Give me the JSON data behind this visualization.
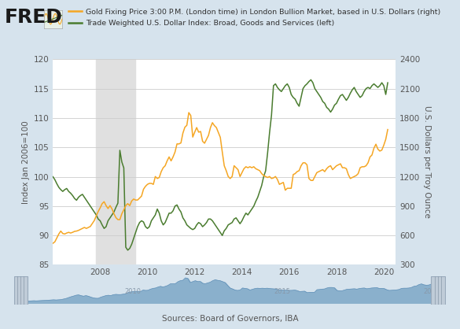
{
  "legend_line1": "Gold Fixing Price 3:00 P.M. (London time) in London Bullion Market, based in U.S. Dollars (right)",
  "legend_line2": "Trade Weighted U.S. Dollar Index: Broad, Goods and Services (left)",
  "ylabel_left": "Index Jan 2006=100",
  "ylabel_right": "U.S. Dollars per Troy Ounce",
  "source": "Sources: Board of Governors, IBA",
  "bg_color": "#d6e3ed",
  "plot_bg_color": "#ffffff",
  "recession_color": "#e0e0e0",
  "recession_start": 2007.83,
  "recession_end": 2009.5,
  "ylim_left": [
    85,
    120
  ],
  "ylim_right": [
    300,
    2400
  ],
  "xlim": [
    2006.0,
    2020.5
  ],
  "yticks_left": [
    85,
    90,
    95,
    100,
    105,
    110,
    115,
    120
  ],
  "yticks_right": [
    300,
    600,
    900,
    1200,
    1500,
    1800,
    2100,
    2400
  ],
  "xticks": [
    2008,
    2010,
    2012,
    2014,
    2016,
    2018,
    2020
  ],
  "dollar_color": "#4a7c2f",
  "gold_color": "#f5a623",
  "dollar_index": {
    "x": [
      2006.0,
      2006.083,
      2006.167,
      2006.25,
      2006.333,
      2006.417,
      2006.5,
      2006.583,
      2006.667,
      2006.75,
      2006.833,
      2006.917,
      2007.0,
      2007.083,
      2007.167,
      2007.25,
      2007.333,
      2007.417,
      2007.5,
      2007.583,
      2007.667,
      2007.75,
      2007.833,
      2007.917,
      2008.0,
      2008.083,
      2008.167,
      2008.25,
      2008.333,
      2008.417,
      2008.5,
      2008.583,
      2008.667,
      2008.75,
      2008.833,
      2008.917,
      2009.0,
      2009.083,
      2009.167,
      2009.25,
      2009.333,
      2009.417,
      2009.5,
      2009.583,
      2009.667,
      2009.75,
      2009.833,
      2009.917,
      2010.0,
      2010.083,
      2010.167,
      2010.25,
      2010.333,
      2010.417,
      2010.5,
      2010.583,
      2010.667,
      2010.75,
      2010.833,
      2010.917,
      2011.0,
      2011.083,
      2011.167,
      2011.25,
      2011.333,
      2011.417,
      2011.5,
      2011.583,
      2011.667,
      2011.75,
      2011.833,
      2011.917,
      2012.0,
      2012.083,
      2012.167,
      2012.25,
      2012.333,
      2012.417,
      2012.5,
      2012.583,
      2012.667,
      2012.75,
      2012.833,
      2012.917,
      2013.0,
      2013.083,
      2013.167,
      2013.25,
      2013.333,
      2013.417,
      2013.5,
      2013.583,
      2013.667,
      2013.75,
      2013.833,
      2013.917,
      2014.0,
      2014.083,
      2014.167,
      2014.25,
      2014.333,
      2014.417,
      2014.5,
      2014.583,
      2014.667,
      2014.75,
      2014.833,
      2014.917,
      2015.0,
      2015.083,
      2015.167,
      2015.25,
      2015.333,
      2015.417,
      2015.5,
      2015.583,
      2015.667,
      2015.75,
      2015.833,
      2015.917,
      2016.0,
      2016.083,
      2016.167,
      2016.25,
      2016.333,
      2016.417,
      2016.5,
      2016.583,
      2016.667,
      2016.75,
      2016.833,
      2016.917,
      2017.0,
      2017.083,
      2017.167,
      2017.25,
      2017.333,
      2017.417,
      2017.5,
      2017.583,
      2017.667,
      2017.75,
      2017.833,
      2017.917,
      2018.0,
      2018.083,
      2018.167,
      2018.25,
      2018.333,
      2018.417,
      2018.5,
      2018.583,
      2018.667,
      2018.75,
      2018.833,
      2018.917,
      2019.0,
      2019.083,
      2019.167,
      2019.25,
      2019.333,
      2019.417,
      2019.5,
      2019.583,
      2019.667,
      2019.75,
      2019.833,
      2019.917,
      2020.0,
      2020.083,
      2020.167
    ],
    "y": [
      100.0,
      99.5,
      98.8,
      98.2,
      97.8,
      97.5,
      97.8,
      98.0,
      97.5,
      97.2,
      96.8,
      96.3,
      96.0,
      96.5,
      96.8,
      97.0,
      96.5,
      96.0,
      95.5,
      95.0,
      94.5,
      94.0,
      93.5,
      92.8,
      92.5,
      91.8,
      91.2,
      91.5,
      92.5,
      93.0,
      93.5,
      94.0,
      94.8,
      95.5,
      104.5,
      102.5,
      101.5,
      88.0,
      87.5,
      87.8,
      88.5,
      89.5,
      90.5,
      91.5,
      92.2,
      92.5,
      92.3,
      91.5,
      91.2,
      91.5,
      92.5,
      93.0,
      93.5,
      94.5,
      93.8,
      92.5,
      91.8,
      92.2,
      93.0,
      93.8,
      93.8,
      94.2,
      95.0,
      95.2,
      94.5,
      94.0,
      93.0,
      92.5,
      91.8,
      91.5,
      91.2,
      91.0,
      91.2,
      91.8,
      92.2,
      92.0,
      91.5,
      91.8,
      92.2,
      92.8,
      92.8,
      92.5,
      92.0,
      91.5,
      91.0,
      90.5,
      90.0,
      90.8,
      91.2,
      91.8,
      92.0,
      92.2,
      92.8,
      93.0,
      92.5,
      92.0,
      92.5,
      93.2,
      93.8,
      93.5,
      94.0,
      94.5,
      95.0,
      95.8,
      96.5,
      97.5,
      98.5,
      100.0,
      101.0,
      104.0,
      107.5,
      110.5,
      115.5,
      115.8,
      115.2,
      114.8,
      114.5,
      115.0,
      115.5,
      115.8,
      115.2,
      114.0,
      113.5,
      113.2,
      112.5,
      112.0,
      113.5,
      115.0,
      115.5,
      115.8,
      116.2,
      116.5,
      116.0,
      115.0,
      114.5,
      114.0,
      113.5,
      112.8,
      112.5,
      111.8,
      111.5,
      111.0,
      111.5,
      112.2,
      112.5,
      113.2,
      113.8,
      114.0,
      113.5,
      113.0,
      113.5,
      114.2,
      114.8,
      115.2,
      114.5,
      114.0,
      113.5,
      113.8,
      114.5,
      115.0,
      115.2,
      115.0,
      115.5,
      115.8,
      115.5,
      115.2,
      115.5,
      116.0,
      115.5,
      114.0,
      116.0
    ]
  },
  "gold_price": {
    "x": [
      2006.0,
      2006.083,
      2006.167,
      2006.25,
      2006.333,
      2006.417,
      2006.5,
      2006.583,
      2006.667,
      2006.75,
      2006.833,
      2006.917,
      2007.0,
      2007.083,
      2007.167,
      2007.25,
      2007.333,
      2007.417,
      2007.5,
      2007.583,
      2007.667,
      2007.75,
      2007.833,
      2007.917,
      2008.0,
      2008.083,
      2008.167,
      2008.25,
      2008.333,
      2008.417,
      2008.5,
      2008.583,
      2008.667,
      2008.75,
      2008.833,
      2008.917,
      2009.0,
      2009.083,
      2009.167,
      2009.25,
      2009.333,
      2009.417,
      2009.5,
      2009.583,
      2009.667,
      2009.75,
      2009.833,
      2009.917,
      2010.0,
      2010.083,
      2010.167,
      2010.25,
      2010.333,
      2010.417,
      2010.5,
      2010.583,
      2010.667,
      2010.75,
      2010.833,
      2010.917,
      2011.0,
      2011.083,
      2011.167,
      2011.25,
      2011.333,
      2011.417,
      2011.5,
      2011.583,
      2011.667,
      2011.75,
      2011.833,
      2011.917,
      2012.0,
      2012.083,
      2012.167,
      2012.25,
      2012.333,
      2012.417,
      2012.5,
      2012.583,
      2012.667,
      2012.75,
      2012.833,
      2012.917,
      2013.0,
      2013.083,
      2013.167,
      2013.25,
      2013.333,
      2013.417,
      2013.5,
      2013.583,
      2013.667,
      2013.75,
      2013.833,
      2013.917,
      2014.0,
      2014.083,
      2014.167,
      2014.25,
      2014.333,
      2014.417,
      2014.5,
      2014.583,
      2014.667,
      2014.75,
      2014.833,
      2014.917,
      2015.0,
      2015.083,
      2015.167,
      2015.25,
      2015.333,
      2015.417,
      2015.5,
      2015.583,
      2015.667,
      2015.75,
      2015.833,
      2015.917,
      2016.0,
      2016.083,
      2016.167,
      2016.25,
      2016.333,
      2016.417,
      2016.5,
      2016.583,
      2016.667,
      2016.75,
      2016.833,
      2016.917,
      2017.0,
      2017.083,
      2017.167,
      2017.25,
      2017.333,
      2017.417,
      2017.5,
      2017.583,
      2017.667,
      2017.75,
      2017.833,
      2017.917,
      2018.0,
      2018.083,
      2018.167,
      2018.25,
      2018.333,
      2018.417,
      2018.5,
      2018.583,
      2018.667,
      2018.75,
      2018.833,
      2018.917,
      2019.0,
      2019.083,
      2019.167,
      2019.25,
      2019.333,
      2019.417,
      2019.5,
      2019.583,
      2019.667,
      2019.75,
      2019.833,
      2019.917,
      2020.0,
      2020.083,
      2020.167
    ],
    "y": [
      520,
      535,
      575,
      615,
      645,
      620,
      615,
      625,
      632,
      625,
      632,
      642,
      645,
      652,
      662,
      672,
      682,
      672,
      682,
      692,
      722,
      752,
      800,
      845,
      882,
      925,
      945,
      905,
      875,
      905,
      872,
      822,
      782,
      762,
      762,
      822,
      862,
      905,
      925,
      905,
      952,
      972,
      962,
      962,
      982,
      1002,
      1072,
      1102,
      1122,
      1132,
      1132,
      1122,
      1202,
      1182,
      1192,
      1252,
      1292,
      1312,
      1362,
      1402,
      1362,
      1402,
      1452,
      1535,
      1535,
      1545,
      1645,
      1705,
      1725,
      1855,
      1825,
      1605,
      1655,
      1702,
      1655,
      1662,
      1562,
      1542,
      1582,
      1622,
      1702,
      1752,
      1722,
      1702,
      1652,
      1602,
      1452,
      1312,
      1262,
      1202,
      1182,
      1202,
      1312,
      1292,
      1272,
      1202,
      1242,
      1282,
      1302,
      1292,
      1302,
      1292,
      1302,
      1282,
      1272,
      1262,
      1232,
      1212,
      1202,
      1192,
      1202,
      1182,
      1188,
      1202,
      1172,
      1122,
      1132,
      1142,
      1062,
      1082,
      1082,
      1082,
      1222,
      1232,
      1252,
      1262,
      1312,
      1342,
      1342,
      1322,
      1182,
      1162,
      1162,
      1202,
      1242,
      1252,
      1262,
      1272,
      1252,
      1282,
      1302,
      1312,
      1272,
      1292,
      1312,
      1322,
      1332,
      1292,
      1292,
      1282,
      1222,
      1182,
      1192,
      1202,
      1212,
      1232,
      1292,
      1302,
      1302,
      1312,
      1342,
      1402,
      1422,
      1492,
      1532,
      1482,
      1462,
      1472,
      1522,
      1582,
      1682
    ]
  }
}
